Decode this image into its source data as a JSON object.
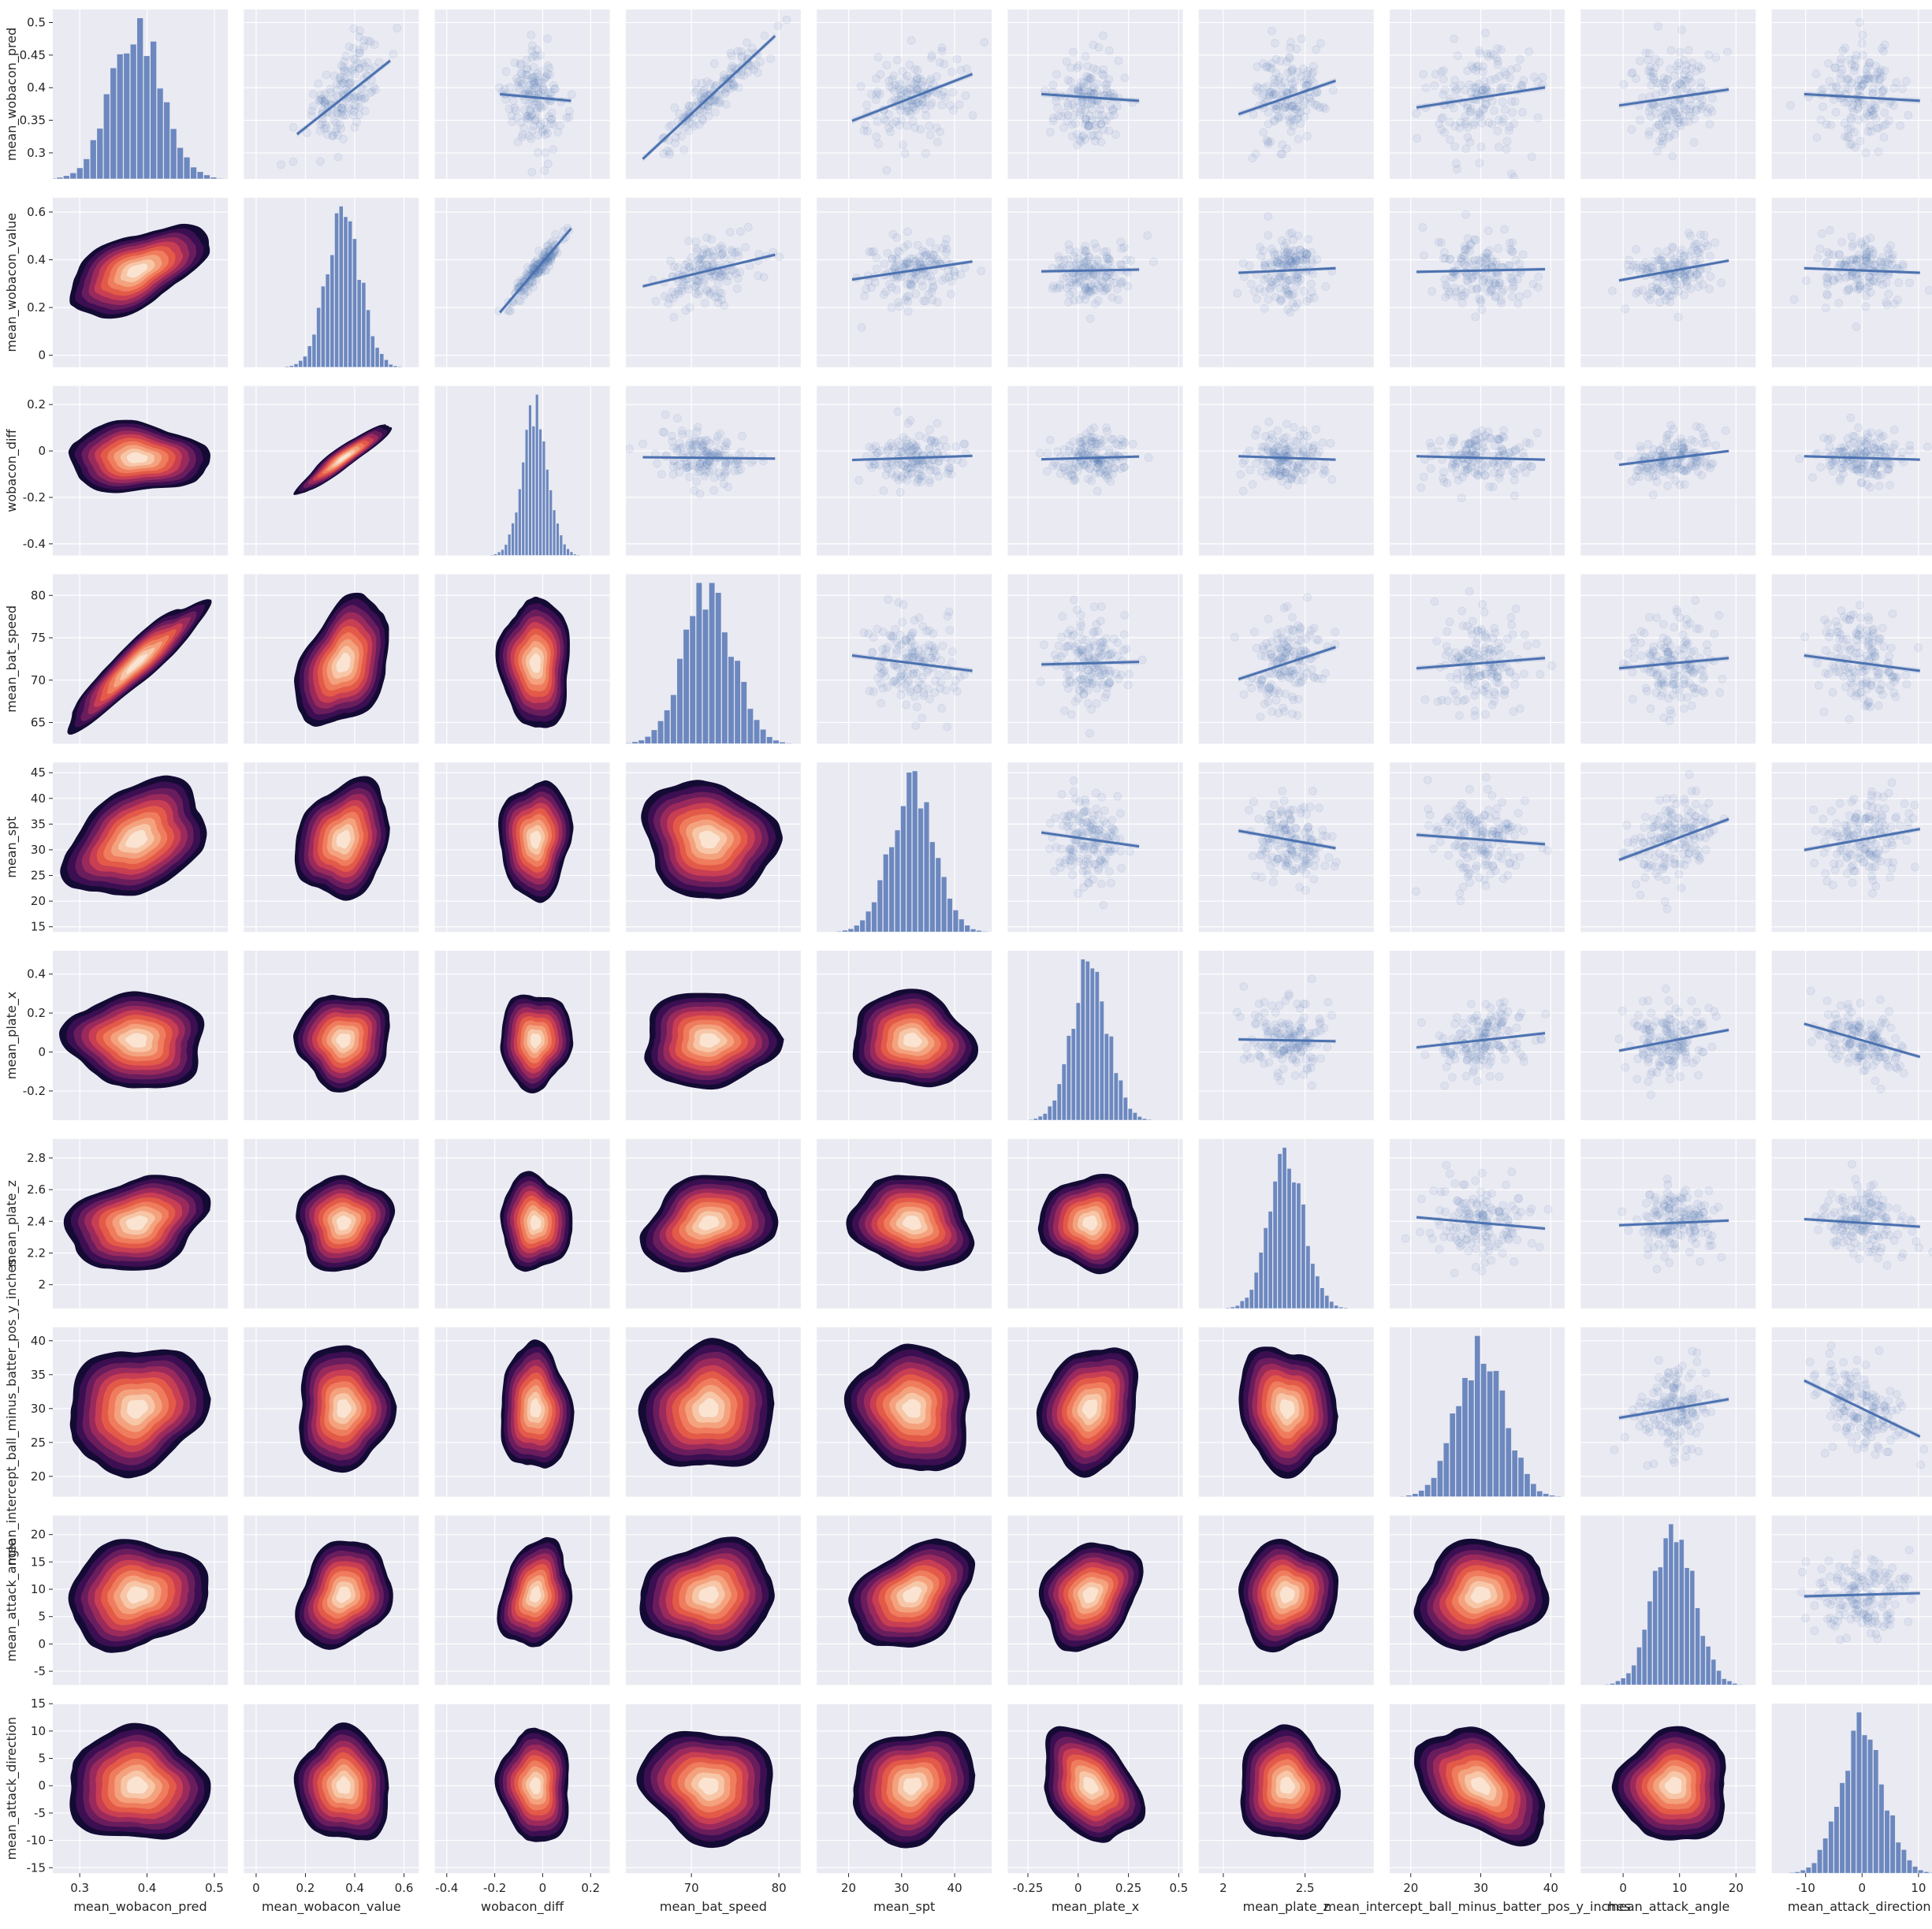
{
  "colors": {
    "panel_background": "#eaeaf2",
    "grid": "#ffffff",
    "scatter_point": "#4c72b0",
    "regression_line": "#4c72b0",
    "histogram_bar": "#6c88bf",
    "kde_palette": [
      "#140b34",
      "#3b0f51",
      "#6a1d5c",
      "#9b2a5c",
      "#c83e53",
      "#e35a48",
      "#ef7d5d",
      "#f4a27e",
      "#f7c6a7",
      "#fae3d1"
    ]
  },
  "chart_data": {
    "type": "pairplot",
    "layout": "10x10 grid; diagonal: histograms, upper triangle: scatter with linear regression line and confidence band, lower triangle: filled KDE contours (rocket-like colormap)",
    "grid": true,
    "variables": [
      {
        "name": "mean_wobacon_pred",
        "range": [
          0.26,
          0.52
        ],
        "ticks": [
          0.3,
          0.4,
          0.5
        ],
        "row_ticks": [
          0.3,
          0.35,
          0.4,
          0.45,
          0.5
        ],
        "mean": 0.385,
        "sd": 0.038
      },
      {
        "name": "mean_wobacon_value",
        "range": [
          -0.05,
          0.66
        ],
        "ticks": [
          0.0,
          0.2,
          0.4,
          0.6
        ],
        "row_ticks": [
          0.0,
          0.2,
          0.4,
          0.6
        ],
        "mean": 0.355,
        "sd": 0.07
      },
      {
        "name": "wobacon_diff",
        "range": [
          -0.45,
          0.28
        ],
        "ticks": [
          -0.4,
          -0.2,
          0.0,
          0.2
        ],
        "row_ticks": [
          -0.4,
          -0.2,
          0.0,
          0.2
        ],
        "mean": -0.03,
        "sd": 0.055
      },
      {
        "name": "mean_bat_speed",
        "range": [
          62.5,
          82.5
        ],
        "ticks": [
          70,
          80
        ],
        "row_ticks": [
          65,
          70,
          75,
          80
        ],
        "mean": 72.0,
        "sd": 2.8
      },
      {
        "name": "mean_spt",
        "range": [
          14,
          47
        ],
        "ticks": [
          20,
          30,
          40
        ],
        "row_ticks": [
          15,
          20,
          25,
          30,
          35,
          40,
          45
        ],
        "mean": 32.0,
        "sd": 4.2
      },
      {
        "name": "mean_plate_x",
        "range": [
          -0.35,
          0.52
        ],
        "ticks": [
          -0.25,
          0.0,
          0.25,
          0.5
        ],
        "row_ticks": [
          -0.2,
          0.0,
          0.2,
          0.4
        ],
        "mean": 0.06,
        "sd": 0.09
      },
      {
        "name": "mean_plate_z",
        "range": [
          1.85,
          2.92
        ],
        "ticks": [
          2.0,
          2.5
        ],
        "row_ticks": [
          2.0,
          2.2,
          2.4,
          2.6,
          2.8
        ],
        "mean": 2.39,
        "sd": 0.11
      },
      {
        "name": "mean_intercept_ball_minus_batter_pos_y_inches",
        "range": [
          17,
          42
        ],
        "ticks": [
          20,
          30,
          40
        ],
        "row_ticks": [
          20,
          25,
          30,
          35,
          40
        ],
        "mean": 30.0,
        "sd": 3.4
      },
      {
        "name": "mean_attack_angle",
        "range": [
          -7.5,
          23.5
        ],
        "ticks": [
          0,
          10,
          20
        ],
        "row_ticks": [
          -5,
          0,
          5,
          10,
          15,
          20
        ],
        "mean": 9.0,
        "sd": 3.6
      },
      {
        "name": "mean_attack_direction",
        "range": [
          -16,
          15
        ],
        "ticks": [
          -10,
          0,
          10
        ],
        "row_ticks": [
          -15,
          -10,
          -5,
          0,
          5,
          10,
          15
        ],
        "mean": 0.0,
        "sd": 3.8
      }
    ],
    "correlations": [
      [
        1.0,
        0.55,
        -0.05,
        0.92,
        0.35,
        -0.05,
        0.25,
        0.15,
        0.12,
        -0.05
      ],
      [
        0.55,
        1.0,
        0.93,
        0.35,
        0.2,
        0.02,
        0.05,
        0.03,
        0.22,
        -0.05
      ],
      [
        -0.05,
        0.93,
        1.0,
        -0.02,
        0.06,
        0.04,
        -0.05,
        -0.05,
        0.2,
        -0.05
      ],
      [
        0.92,
        0.35,
        -0.02,
        1.0,
        -0.12,
        0.02,
        0.25,
        0.08,
        0.08,
        -0.12
      ],
      [
        0.35,
        0.2,
        0.06,
        -0.12,
        1.0,
        -0.12,
        -0.15,
        -0.08,
        0.35,
        0.18
      ],
      [
        -0.05,
        0.02,
        0.04,
        0.02,
        -0.12,
        1.0,
        -0.02,
        0.15,
        0.22,
        -0.35
      ],
      [
        0.25,
        0.05,
        -0.05,
        0.25,
        -0.15,
        -0.02,
        1.0,
        -0.12,
        0.05,
        -0.08
      ],
      [
        0.15,
        0.03,
        -0.05,
        0.08,
        -0.08,
        0.15,
        -0.12,
        1.0,
        0.15,
        -0.45
      ],
      [
        0.12,
        0.22,
        0.2,
        0.08,
        0.35,
        0.22,
        0.05,
        0.15,
        1.0,
        0.03
      ],
      [
        -0.05,
        -0.05,
        -0.05,
        -0.12,
        0.18,
        -0.35,
        -0.08,
        -0.45,
        0.03,
        1.0
      ]
    ]
  }
}
